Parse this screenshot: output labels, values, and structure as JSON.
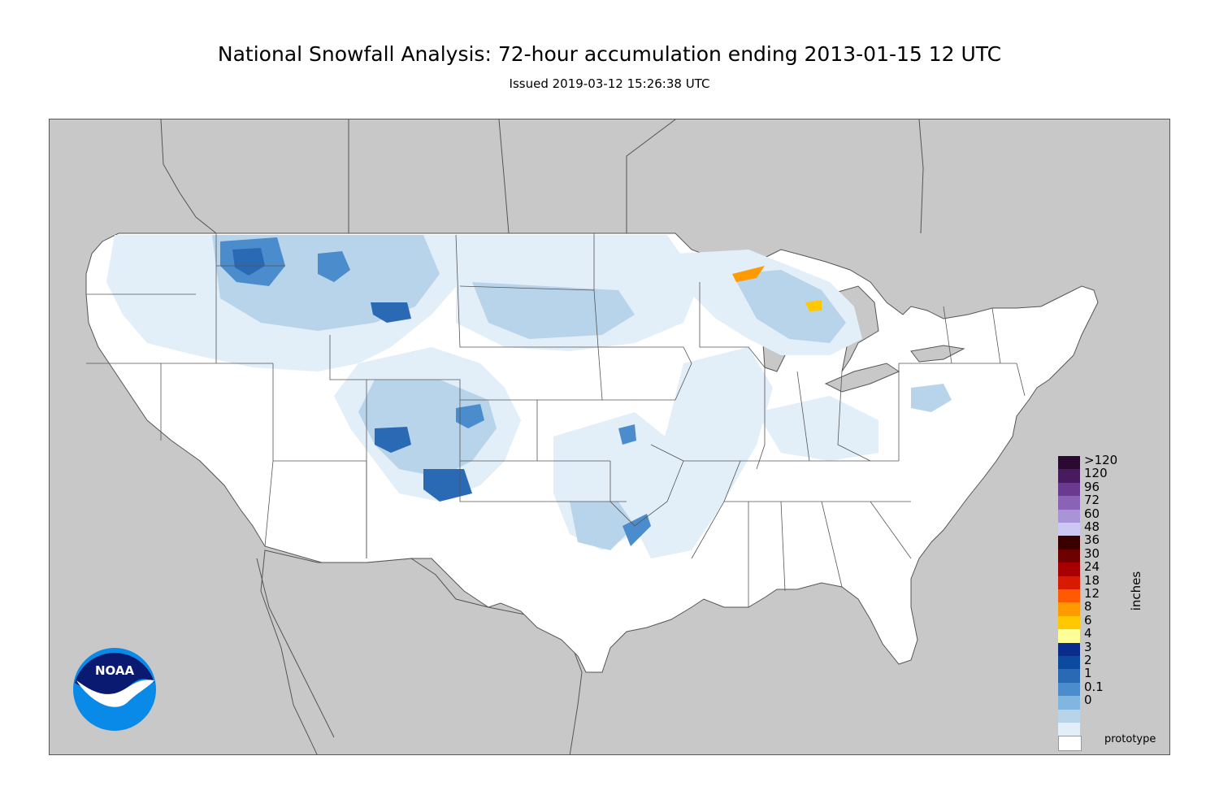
{
  "header": {
    "title": "National Snowfall Analysis: 72-hour accumulation ending 2013-01-15 12 UTC",
    "subtitle": "Issued 2019-03-12 15:26:38 UTC"
  },
  "map": {
    "land_color": "#ffffff",
    "outside_color": "#c8c8c8",
    "border_color": "#555555"
  },
  "legend": {
    "units": "inches",
    "entries": [
      {
        "label": ">120",
        "color": "#2a0a30"
      },
      {
        "label": "120",
        "color": "#4a1a5e"
      },
      {
        "label": "96",
        "color": "#6a3a8e"
      },
      {
        "label": "72",
        "color": "#8a62b6"
      },
      {
        "label": "60",
        "color": "#a994d8"
      },
      {
        "label": "48",
        "color": "#ccc8f4"
      },
      {
        "label": "36",
        "color": "#3a0000"
      },
      {
        "label": "30",
        "color": "#6e0000"
      },
      {
        "label": "24",
        "color": "#a80000"
      },
      {
        "label": "18",
        "color": "#d81a00"
      },
      {
        "label": "12",
        "color": "#ff5a00"
      },
      {
        "label": "8",
        "color": "#ff9a00"
      },
      {
        "label": "6",
        "color": "#ffc800"
      },
      {
        "label": "4",
        "color": "#ffff9a"
      },
      {
        "label": "3",
        "color": "#0a2c8c"
      },
      {
        "label": "2",
        "color": "#0c4aa0"
      },
      {
        "label": "1",
        "color": "#2a6ab4"
      },
      {
        "label": "0.1",
        "color": "#4a8ccc"
      },
      {
        "label": "0",
        "color": "#80b6e0"
      }
    ],
    "extra_colors": [
      "#b8d4ea",
      "#e2eef8",
      "#ffffff"
    ]
  },
  "footer": {
    "prototype_label": "prototype",
    "logo_text": "NOAA"
  }
}
